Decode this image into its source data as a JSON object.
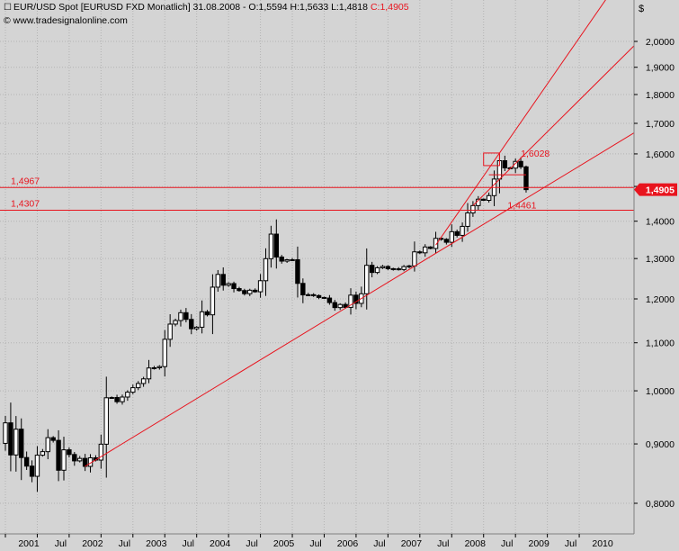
{
  "header": {
    "title": "EUR/USD Spot [EURUSD FXD  Monatlich] 31.08.2008 - O:1,5594 H:1,5633 L:1,4818",
    "close_label": "C:1,4905",
    "source": "© www.tradesignalonline.com",
    "currency_label": "$"
  },
  "colors": {
    "background": "#d4d4d4",
    "grid": "#b3b3b3",
    "up_candle": "#ffffff",
    "down_candle": "#000000",
    "lines": "#e8141e",
    "text": "#000000"
  },
  "chart_data": {
    "type": "candlestick",
    "title": "EUR/USD Spot [EURUSD FXD  Monatlich] 31.08.2008",
    "y_scale": "log",
    "ylim": [
      0.78,
      2.13
    ],
    "y_ticks": [
      "2,0000",
      "1,9000",
      "1,8000",
      "1,7000",
      "1,6000",
      "1,5000",
      "1,4000",
      "1,3000",
      "1,2000",
      "1,1000",
      "1,0000",
      "0,9000",
      "0,8000"
    ],
    "x_ticks": [
      "2001",
      "Jul",
      "2002",
      "Jul",
      "2003",
      "Jul",
      "2004",
      "Jul",
      "2005",
      "Jul",
      "2006",
      "Jul",
      "2007",
      "Jul",
      "2008",
      "Jul",
      "2009",
      "Jul",
      "2010"
    ],
    "last_ohlc": {
      "open": 1.5594,
      "high": 1.5633,
      "low": 1.4818,
      "close": 1.4905
    },
    "last_price_label": "1,4905",
    "horizontal_lines": [
      {
        "value": 1.4967,
        "label": "1,4967"
      },
      {
        "value": 1.4307,
        "label": "1,4307"
      }
    ],
    "annotations": [
      {
        "text": "1,6028",
        "value": 1.6028
      },
      {
        "text": "1,4461",
        "value": 1.4461
      }
    ],
    "closes": [
      0.9384,
      0.8805,
      0.9267,
      0.876,
      0.8612,
      0.844,
      0.8801,
      0.8863,
      0.9112,
      0.9064,
      0.8542,
      0.8895,
      0.8813,
      0.8702,
      0.8745,
      0.8608,
      0.8755,
      0.8716,
      0.8995,
      0.9863,
      0.9868,
      0.9786,
      0.9877,
      0.9973,
      1.0062,
      1.0146,
      1.024,
      1.0463,
      1.0468,
      1.0492,
      1.1076,
      1.1415,
      1.1496,
      1.1676,
      1.1522,
      1.131,
      1.1345,
      1.1697,
      1.1627,
      1.2283,
      1.2597,
      1.233,
      1.237,
      1.2248,
      1.22,
      1.2125,
      1.2208,
      1.2171,
      1.2441,
      1.2997,
      1.3646,
      1.3039,
      1.2934,
      1.2969,
      1.297,
      1.2375,
      1.2096,
      1.21,
      1.2079,
      1.2034,
      1.202,
      1.1913,
      1.1795,
      1.1868,
      1.18,
      1.209,
      1.1894,
      1.2123,
      1.2827,
      1.2646,
      1.2764,
      1.2797,
      1.2742,
      1.2738,
      1.272,
      1.2794,
      1.2812,
      1.3174,
      1.3149,
      1.3302,
      1.3263,
      1.3531,
      1.3506,
      1.3427,
      1.3711,
      1.3612,
      1.3857,
      1.4231,
      1.444,
      1.4625,
      1.4592,
      1.4729,
      1.5221,
      1.5785,
      1.5562,
      1.5554,
      1.5764,
      1.5594,
      1.4905
    ]
  }
}
